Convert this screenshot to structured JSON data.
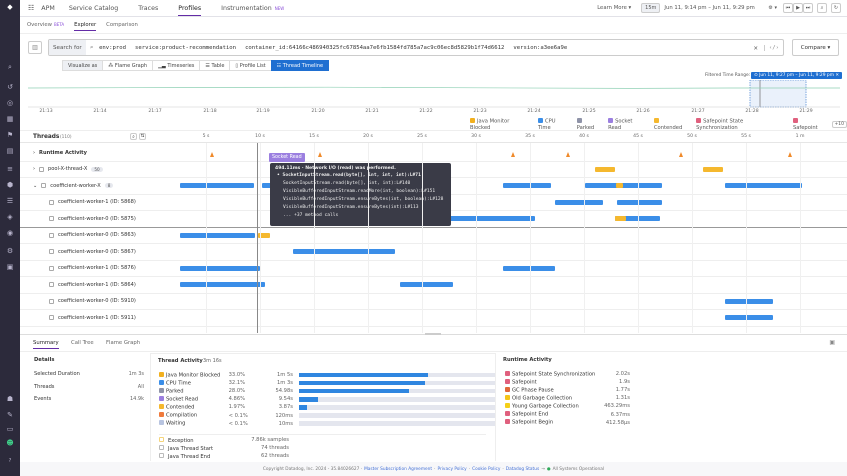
{
  "nav": {
    "items": [
      "APM",
      "Service Catalog",
      "Traces",
      "Profiles",
      "Instrumentation"
    ],
    "active": "Profiles",
    "new_badge": "NEW",
    "learn_more": "Learn More",
    "time_preset": "15m",
    "time_range": "Jun 11, 9:14 pm – Jun 11, 9:29 pm"
  },
  "subtabs": {
    "overview": "Overview",
    "beta": "BETA",
    "explorer": "Explorer",
    "comparison": "Comparison"
  },
  "search": {
    "label": "Search for",
    "terms": [
      "env:prod",
      "service:product-recommendation",
      "container_id:64166c486940325fc67854aa7e6fb1584fd785a7ac9c06ec8d5829b1f74d6612",
      "version:a3ee6a9e"
    ],
    "compare": "Compare"
  },
  "visualize": {
    "label": "Visualize as",
    "options": [
      "Flame Graph",
      "Timeseries",
      "Table",
      "Profile List",
      "Thread Timeline"
    ],
    "active": "Thread Timeline"
  },
  "overview": {
    "filtered_label": "Filtered Time Range:",
    "filtered_value": "Jun 11, 9:27 pm – Jun 11, 9:29 pm",
    "ticks": [
      "21:13",
      "21:14",
      "21:17",
      "21:18",
      "21:19",
      "21:20",
      "21:21",
      "21:22",
      "21:23",
      "21:24",
      "21:25",
      "21:26",
      "21:27",
      "21:28",
      "21:29"
    ]
  },
  "legend": {
    "items": [
      {
        "label": "Java Monitor Blocked",
        "color": "#f2b01e"
      },
      {
        "label": "CPU Time",
        "color": "#3b8ee8"
      },
      {
        "label": "Parked",
        "color": "#8f93a8"
      },
      {
        "label": "Socket Read",
        "color": "#9b7fe0"
      },
      {
        "label": "Contended",
        "color": "#f5b82e"
      },
      {
        "label": "Safepoint State Synchronization",
        "color": "#e0607e"
      },
      {
        "label": "Safepoint",
        "color": "#e0607e"
      }
    ],
    "more": "+10"
  },
  "threads": {
    "title": "Threads",
    "count": "(110)",
    "ticks": [
      "5 s",
      "10 s",
      "15 s",
      "20 s",
      "25 s",
      "30 s",
      "35 s",
      "40 s",
      "45 s",
      "50 s",
      "55 s",
      "1 m"
    ],
    "rows": [
      {
        "label": "Runtime Activity",
        "type": "group",
        "spikes": [
          5.6,
          15.6,
          33.4,
          38.5,
          49,
          59.1
        ]
      },
      {
        "label": "pool-X-thread-X",
        "type": "group",
        "badge": "50",
        "bars": [
          [
            41,
            42.9,
            "yellow"
          ],
          [
            51,
            52.9,
            "yellow"
          ]
        ]
      },
      {
        "label": "coefficient-worker-X",
        "type": "group-open",
        "badge": "8",
        "bars": [
          [
            2.6,
            9.4,
            "blue"
          ],
          [
            10.2,
            13,
            "blue"
          ],
          [
            32.5,
            36.9,
            "blue"
          ],
          [
            40.1,
            47.2,
            "blue"
          ],
          [
            43,
            43.6,
            "yellow"
          ],
          [
            53.1,
            60.2,
            "blue"
          ]
        ]
      },
      {
        "label": "coefficient-worker-1 (ID: 5868)",
        "bars": [
          [
            37.3,
            41.8,
            "blue"
          ],
          [
            43.1,
            47.2,
            "blue"
          ]
        ]
      },
      {
        "label": "coefficient-worker-0 (ID: 5875)",
        "bars": [
          [
            27.6,
            35.5,
            "blue"
          ],
          [
            42.9,
            47,
            "blue"
          ],
          [
            42.9,
            43.9,
            "yellow"
          ]
        ]
      },
      {
        "label": "coefficient-worker-0 (ID: 5863)",
        "bars": [
          [
            2.6,
            9.5,
            "blue"
          ],
          [
            9.8,
            10.9,
            "yellow"
          ]
        ]
      },
      {
        "label": "coefficient-worker-0 (ID: 5867)",
        "bars": [
          [
            13.1,
            22.5,
            "blue"
          ]
        ]
      },
      {
        "label": "coefficient-worker-1 (ID: 5876)",
        "bars": [
          [
            2.6,
            10,
            "blue"
          ],
          [
            32.5,
            37.3,
            "blue"
          ]
        ]
      },
      {
        "label": "coefficient-worker-1 (ID: 5864)",
        "bars": [
          [
            2.6,
            10.5,
            "blue"
          ],
          [
            23,
            27.9,
            "blue"
          ]
        ]
      },
      {
        "label": "coefficient-worker-0 (ID: 5910)",
        "bars": [
          [
            53.1,
            57.5,
            "blue"
          ]
        ]
      },
      {
        "label": "coefficient-worker-1 (ID: 5911)",
        "bars": [
          [
            53.1,
            57.5,
            "blue"
          ]
        ]
      }
    ]
  },
  "tooltip": {
    "badge": "Socket Read",
    "header": "494.11ms · Network I/O (read) was performed.",
    "frames": [
      "SocketInputStream.read(byte[], int, int, int):L#71",
      "SocketInputStream.read(byte[], int, int):L#140",
      "VisibleBufferedInputStream.readMore(int, boolean):L#151",
      "VisibleBufferedInputStream.ensureBytes(int, boolean):L#128",
      "VisibleBufferedInputStream.ensureBytes(int):L#113",
      "... +37 method calls"
    ]
  },
  "bottom": {
    "tabs": [
      "Summary",
      "Call Tree",
      "Flame Graph"
    ],
    "details": {
      "title": "Details",
      "rows": [
        [
          "Selected Duration",
          "1m 3s"
        ],
        [
          "Threads",
          "All"
        ],
        [
          "Events",
          "14.9k"
        ]
      ]
    },
    "thread_activity": {
      "title": "Thread Activity",
      "total": "3m 16s",
      "rows": [
        {
          "label": "Java Monitor Blocked",
          "pct": "33.0%",
          "time": "1m 5s",
          "color": "#f2b01e",
          "fill": 33.0
        },
        {
          "label": "CPU Time",
          "pct": "32.1%",
          "time": "1m 3s",
          "color": "#3b8ee8",
          "fill": 32.1
        },
        {
          "label": "Parked",
          "pct": "28.0%",
          "time": "54.98s",
          "color": "#8f93a8",
          "fill": 28.0
        },
        {
          "label": "Socket Read",
          "pct": "4.86%",
          "time": "9.54s",
          "color": "#9b7fe0",
          "fill": 4.86
        },
        {
          "label": "Contended",
          "pct": "1.97%",
          "time": "3.87s",
          "color": "#f5b82e",
          "fill": 1.97
        },
        {
          "label": "Compilation",
          "pct": "< 0.1%",
          "time": "120ms",
          "color": "#ef7a3c",
          "fill": 0
        },
        {
          "label": "Waiting",
          "pct": "< 0.1%",
          "time": "10ms",
          "color": "#b8c4e0",
          "fill": 0
        }
      ],
      "events": [
        [
          "Exception",
          "7.86k samples"
        ],
        [
          "Java Thread Start",
          "74 threads"
        ],
        [
          "Java Thread End",
          "62 threads"
        ]
      ]
    },
    "runtime_activity": {
      "title": "Runtime Activity",
      "rows": [
        [
          "Safepoint State Synchronization",
          "2.02s",
          "#e0607e"
        ],
        [
          "Safepoint",
          "1.9s",
          "#e0607e"
        ],
        [
          "GC Phase Pause",
          "1.77s",
          "#e0683a"
        ],
        [
          "Old Garbage Collection",
          "1.31s",
          "#f5c518"
        ],
        [
          "Young Garbage Collection",
          "463.29ms",
          "#f5d018"
        ],
        [
          "Safepoint End",
          "6.37ms",
          "#e0607e"
        ],
        [
          "Safepoint Begin",
          "412.58µs",
          "#e0607e"
        ]
      ]
    }
  },
  "footer": {
    "copyright": "Copyright Datadog, Inc. 2024 - 35.84026627",
    "links": [
      "Master Subscription Agreement",
      "Privacy Policy",
      "Cookie Policy",
      "Datadog Status"
    ],
    "status": "All Systems Operational"
  },
  "colors": {
    "blue": "#3b8ee8",
    "yellow": "#f5b82e",
    "accent": "#632ca6",
    "spike": "#f08a2a"
  }
}
